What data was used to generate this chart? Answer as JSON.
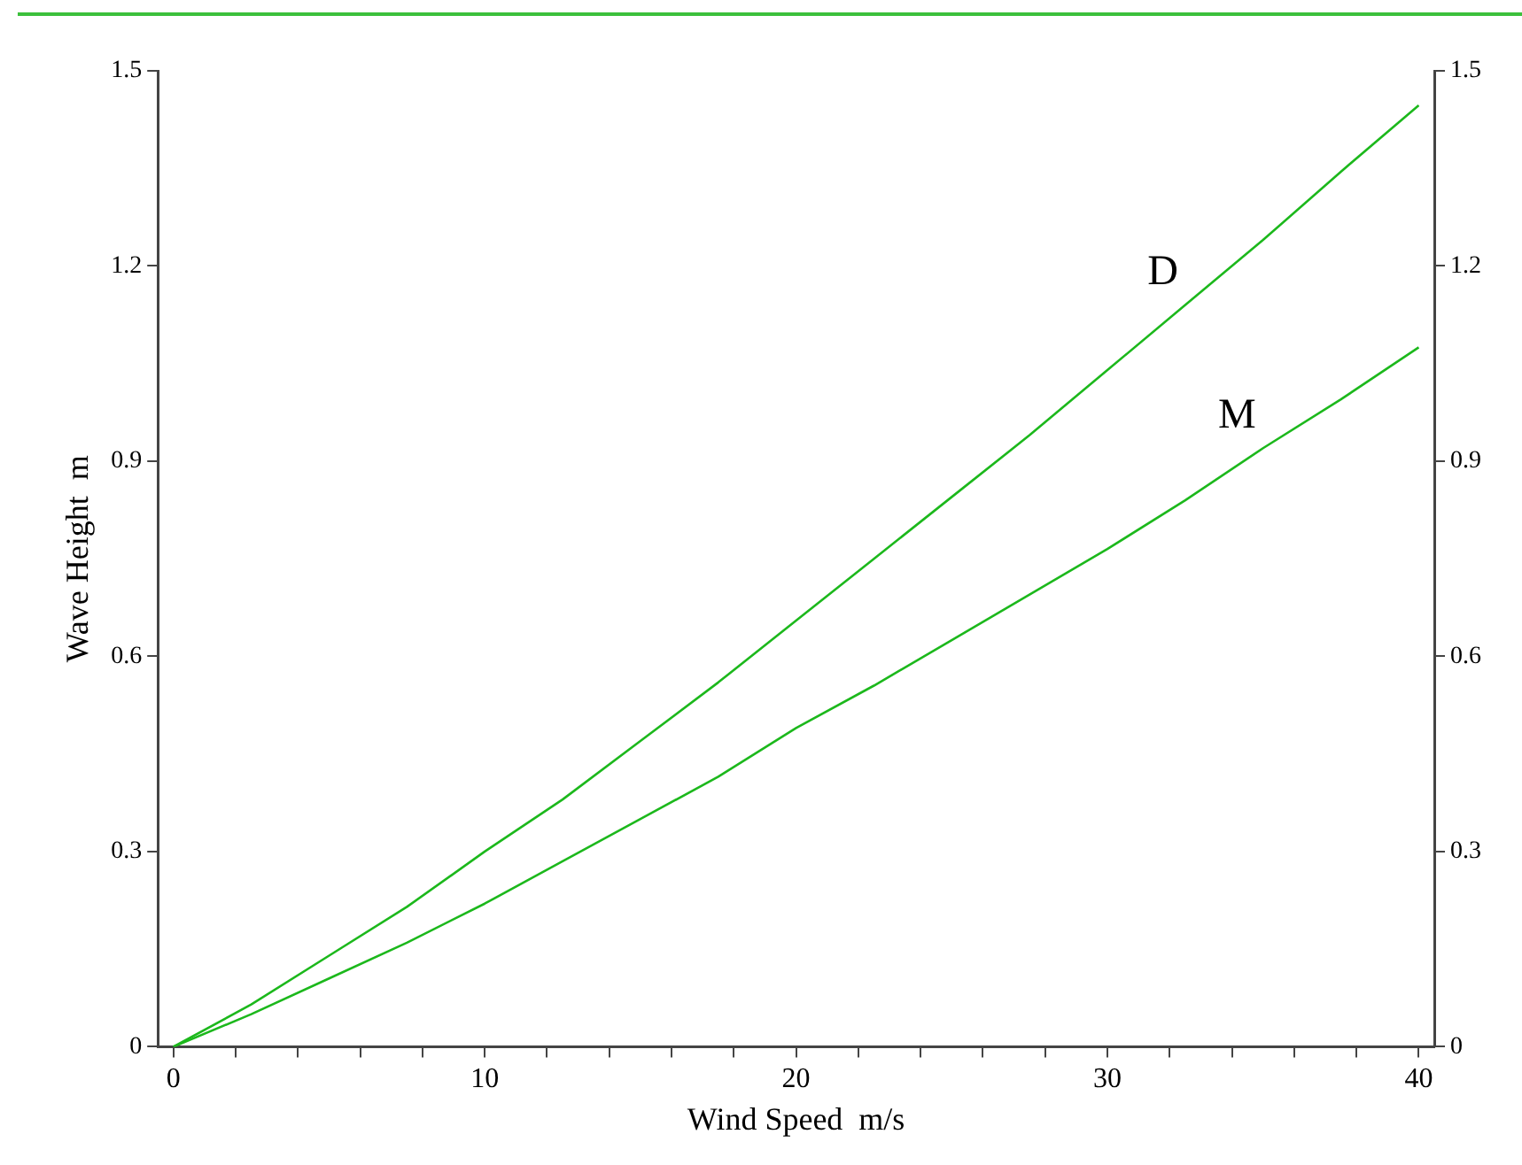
{
  "chart_data": {
    "type": "line",
    "xlabel": "Wind Speed  m/s",
    "ylabel": "Wave Height  m",
    "xlim": [
      -0.5,
      40.5
    ],
    "xticks": [
      0,
      {
        "value": 2,
        "label": null
      },
      {
        "value": 4,
        "label": null
      },
      {
        "value": 6,
        "label": null
      },
      {
        "value": 8,
        "label": null
      },
      10,
      {
        "value": 12,
        "label": null
      },
      {
        "value": 14,
        "label": null
      },
      {
        "value": 16,
        "label": null
      },
      {
        "value": 18,
        "label": null
      },
      20,
      {
        "value": 22,
        "label": null
      },
      {
        "value": 24,
        "label": null
      },
      {
        "value": 26,
        "label": null
      },
      {
        "value": 28,
        "label": null
      },
      30,
      {
        "value": 32,
        "label": null
      },
      {
        "value": 34,
        "label": null
      },
      {
        "value": 36,
        "label": null
      },
      {
        "value": 38,
        "label": null
      },
      40
    ],
    "ylim": [
      0,
      1.5
    ],
    "yticks": [
      0,
      0.3,
      0.6,
      0.9,
      1.2,
      1.5
    ],
    "y2lim": [
      0,
      1.5
    ],
    "y2ticks": [
      0,
      0.3,
      0.6,
      0.9,
      1.2,
      1.5
    ],
    "x": [
      0,
      2.5,
      5,
      7.5,
      10,
      12.5,
      15,
      17.5,
      20,
      22.5,
      25,
      27.5,
      30,
      32.5,
      35,
      37.5,
      40
    ],
    "grid": false,
    "legend": false,
    "marker": "none",
    "line_style": "solid",
    "series": [
      {
        "name": "D",
        "color": "#1cb81c",
        "values": [
          0,
          0.065,
          0.14,
          0.215,
          0.3,
          0.38,
          0.47,
          0.56,
          0.655,
          0.75,
          0.845,
          0.94,
          1.04,
          1.14,
          1.24,
          1.345,
          1.447
        ]
      },
      {
        "name": "M",
        "color": "#1cb81c",
        "values": [
          0,
          0.05,
          0.105,
          0.16,
          0.22,
          0.285,
          0.35,
          0.415,
          0.49,
          0.555,
          0.625,
          0.695,
          0.765,
          0.84,
          0.92,
          0.995,
          1.075
        ]
      }
    ]
  }
}
